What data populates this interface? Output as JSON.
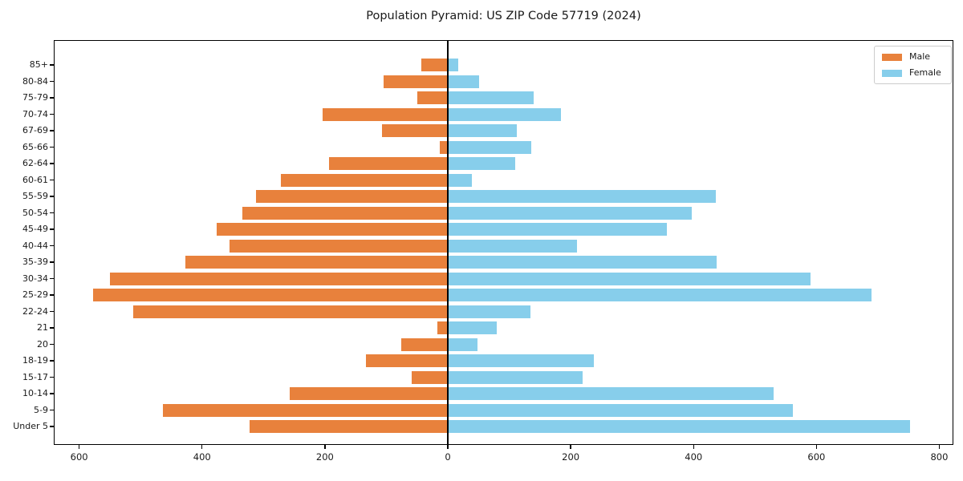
{
  "chart_data": {
    "type": "bar",
    "variant": "population-pyramid-horizontal",
    "title": "Population Pyramid: US ZIP Code 57719 (2024)",
    "categories": [
      "85+",
      "80-84",
      "75-79",
      "70-74",
      "67-69",
      "65-66",
      "62-64",
      "60-61",
      "55-59",
      "50-54",
      "45-49",
      "40-44",
      "35-39",
      "30-34",
      "25-29",
      "22-24",
      "21",
      "20",
      "18-19",
      "15-17",
      "10-14",
      "5-9",
      "Under 5"
    ],
    "categories_order": "top-to-bottom",
    "series": [
      {
        "name": "Male",
        "side": "left",
        "color": "#E8813C",
        "values": [
          43,
          105,
          50,
          204,
          107,
          13,
          193,
          272,
          312,
          334,
          376,
          355,
          427,
          550,
          578,
          512,
          17,
          76,
          133,
          59,
          258,
          464,
          323
        ]
      },
      {
        "name": "Female",
        "side": "right",
        "color": "#87CEEB",
        "values": [
          17,
          51,
          140,
          184,
          112,
          136,
          109,
          39,
          436,
          397,
          357,
          210,
          437,
          590,
          690,
          134,
          79,
          48,
          238,
          220,
          530,
          562,
          752
        ]
      }
    ],
    "x_axis": {
      "tick_values": [
        -600,
        -400,
        -200,
        0,
        200,
        400,
        600,
        800
      ],
      "tick_labels": [
        "600",
        "400",
        "200",
        "0",
        "200",
        "400",
        "600",
        "800"
      ],
      "xlim": [
        -643,
        822
      ]
    },
    "y_axis": {
      "label": "",
      "tick_side": "left"
    },
    "xlabel": "",
    "ylabel": "",
    "legend": {
      "position": "upper-right",
      "labels": [
        "Male",
        "Female"
      ]
    },
    "grid": false,
    "zero_line": true,
    "background_color": "#ffffff",
    "axis_color": "#000000"
  }
}
